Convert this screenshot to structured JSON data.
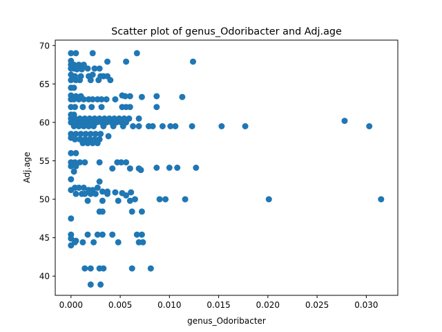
{
  "chart_data": {
    "type": "scatter",
    "title": "Scatter plot of genus_Odoribacter and Adj.age",
    "xlabel": "genus_Odoribacter",
    "ylabel": "Adj.age",
    "xlim": [
      -0.0016,
      0.0332
    ],
    "ylim": [
      37.5,
      70.7
    ],
    "xticks": [
      0.0,
      0.005,
      0.01,
      0.015,
      0.02,
      0.025,
      0.03
    ],
    "xtick_labels": [
      "0.000",
      "0.005",
      "0.010",
      "0.015",
      "0.020",
      "0.025",
      "0.030"
    ],
    "yticks": [
      40,
      45,
      50,
      55,
      60,
      65,
      70
    ],
    "ytick_labels": [
      "40",
      "45",
      "50",
      "55",
      "60",
      "65",
      "70"
    ],
    "grid": false,
    "marker_color": "#1f77b4",
    "points": [
      [
        0.0,
        69.0
      ],
      [
        0.0005,
        69.0
      ],
      [
        0.0022,
        69.0
      ],
      [
        0.0067,
        69.0
      ],
      [
        0.0,
        68.0
      ],
      [
        0.0,
        67.5
      ],
      [
        0.0003,
        67.5
      ],
      [
        0.0008,
        67.5
      ],
      [
        0.0013,
        67.5
      ],
      [
        0.0037,
        67.9
      ],
      [
        0.0056,
        67.9
      ],
      [
        0.0124,
        67.9
      ],
      [
        0.0,
        67.0
      ],
      [
        0.0003,
        67.0
      ],
      [
        0.0006,
        66.9
      ],
      [
        0.0011,
        66.9
      ],
      [
        0.0017,
        67.0
      ],
      [
        0.0024,
        67.0
      ],
      [
        0.0029,
        67.0
      ],
      [
        0.0,
        66.2
      ],
      [
        0.0004,
        66.0
      ],
      [
        0.001,
        66.0
      ],
      [
        0.0018,
        66.0
      ],
      [
        0.0022,
        66.2
      ],
      [
        0.003,
        66.0
      ],
      [
        0.0033,
        66.0
      ],
      [
        0.0037,
        66.0
      ],
      [
        0.0,
        65.5
      ],
      [
        0.0005,
        65.5
      ],
      [
        0.0009,
        65.5
      ],
      [
        0.002,
        65.5
      ],
      [
        0.0028,
        65.5
      ],
      [
        0.004,
        65.5
      ],
      [
        0.0,
        64.5
      ],
      [
        0.0003,
        64.5
      ],
      [
        0.0,
        63.5
      ],
      [
        0.0005,
        63.4
      ],
      [
        0.001,
        63.4
      ],
      [
        0.0052,
        63.5
      ],
      [
        0.0055,
        63.4
      ],
      [
        0.006,
        63.4
      ],
      [
        0.0072,
        63.3
      ],
      [
        0.0087,
        63.4
      ],
      [
        0.0113,
        63.3
      ],
      [
        0.0,
        63.0
      ],
      [
        0.0003,
        63.0
      ],
      [
        0.0008,
        63.0
      ],
      [
        0.0013,
        63.0
      ],
      [
        0.0018,
        63.0
      ],
      [
        0.0022,
        63.0
      ],
      [
        0.0027,
        63.0
      ],
      [
        0.0031,
        63.0
      ],
      [
        0.0036,
        63.0
      ],
      [
        0.0045,
        63.0
      ],
      [
        0.0,
        62.0
      ],
      [
        0.0004,
        62.0
      ],
      [
        0.0012,
        62.0
      ],
      [
        0.0021,
        62.0
      ],
      [
        0.0031,
        62.0
      ],
      [
        0.0052,
        62.0
      ],
      [
        0.0056,
        62.0
      ],
      [
        0.006,
        62.0
      ],
      [
        0.0087,
        62.0
      ],
      [
        0.0,
        61.0
      ],
      [
        0.0003,
        61.0
      ],
      [
        0.0,
        60.5
      ],
      [
        0.0004,
        60.5
      ],
      [
        0.0009,
        60.5
      ],
      [
        0.0014,
        60.5
      ],
      [
        0.0019,
        60.5
      ],
      [
        0.0024,
        60.5
      ],
      [
        0.0029,
        60.5
      ],
      [
        0.0034,
        60.5
      ],
      [
        0.0039,
        60.5
      ],
      [
        0.0044,
        60.5
      ],
      [
        0.0049,
        60.5
      ],
      [
        0.0054,
        60.5
      ],
      [
        0.0059,
        60.5
      ],
      [
        0.0069,
        60.5
      ],
      [
        0.0,
        60.0
      ],
      [
        0.0006,
        60.0
      ],
      [
        0.0011,
        60.0
      ],
      [
        0.0016,
        60.0
      ],
      [
        0.0021,
        60.0
      ],
      [
        0.0026,
        60.0
      ],
      [
        0.0031,
        60.0
      ],
      [
        0.0036,
        60.0
      ],
      [
        0.0041,
        60.0
      ],
      [
        0.0046,
        60.0
      ],
      [
        0.0051,
        60.0
      ],
      [
        0.0056,
        60.0
      ],
      [
        0.0278,
        60.2
      ],
      [
        0.0003,
        59.5
      ],
      [
        0.0008,
        59.5
      ],
      [
        0.0013,
        59.5
      ],
      [
        0.0018,
        59.5
      ],
      [
        0.0023,
        59.5
      ],
      [
        0.0033,
        59.5
      ],
      [
        0.0043,
        59.5
      ],
      [
        0.0053,
        59.5
      ],
      [
        0.0063,
        59.5
      ],
      [
        0.0069,
        59.5
      ],
      [
        0.0079,
        59.5
      ],
      [
        0.0083,
        59.5
      ],
      [
        0.0093,
        59.5
      ],
      [
        0.0101,
        59.5
      ],
      [
        0.0106,
        59.5
      ],
      [
        0.0123,
        59.5
      ],
      [
        0.0153,
        59.5
      ],
      [
        0.0177,
        59.5
      ],
      [
        0.0303,
        59.5
      ],
      [
        0.0,
        58.5
      ],
      [
        0.0005,
        58.5
      ],
      [
        0.001,
        58.5
      ],
      [
        0.0015,
        58.5
      ],
      [
        0.002,
        58.5
      ],
      [
        0.0025,
        58.5
      ],
      [
        0.003,
        58.5
      ],
      [
        0.0038,
        58.2
      ],
      [
        0.0,
        58.0
      ],
      [
        0.0004,
        57.8
      ],
      [
        0.0009,
        57.8
      ],
      [
        0.0014,
        57.8
      ],
      [
        0.0019,
        57.8
      ],
      [
        0.0024,
        57.8
      ],
      [
        0.0029,
        57.8
      ],
      [
        0.0012,
        57.3
      ],
      [
        0.0017,
        57.3
      ],
      [
        0.0022,
        57.3
      ],
      [
        0.0027,
        57.3
      ],
      [
        0.0,
        56.0
      ],
      [
        0.0005,
        56.0
      ],
      [
        0.0,
        54.8
      ],
      [
        0.0004,
        54.8
      ],
      [
        0.0009,
        54.8
      ],
      [
        0.0014,
        54.8
      ],
      [
        0.0029,
        54.8
      ],
      [
        0.0047,
        54.8
      ],
      [
        0.0051,
        54.8
      ],
      [
        0.0056,
        54.8
      ],
      [
        0.0,
        54.3
      ],
      [
        0.0005,
        54.3
      ],
      [
        0.0042,
        54.0
      ],
      [
        0.006,
        54.0
      ],
      [
        0.0069,
        54.0
      ],
      [
        0.0071,
        53.8
      ],
      [
        0.0087,
        54.1
      ],
      [
        0.01,
        54.1
      ],
      [
        0.0108,
        54.1
      ],
      [
        0.0127,
        54.1
      ],
      [
        0.0003,
        53.6
      ],
      [
        0.0,
        52.6
      ],
      [
        0.0029,
        52.3
      ],
      [
        0.0,
        51.2
      ],
      [
        0.0004,
        51.5
      ],
      [
        0.0008,
        51.5
      ],
      [
        0.0013,
        51.5
      ],
      [
        0.0018,
        51.2
      ],
      [
        0.0022,
        51.2
      ],
      [
        0.0027,
        51.5
      ],
      [
        0.0032,
        51.0
      ],
      [
        0.0037,
        51.0
      ],
      [
        0.0045,
        50.9
      ],
      [
        0.0052,
        50.8
      ],
      [
        0.0061,
        50.9
      ],
      [
        0.0005,
        50.7
      ],
      [
        0.0011,
        50.7
      ],
      [
        0.0014,
        50.7
      ],
      [
        0.002,
        50.7
      ],
      [
        0.0025,
        50.7
      ],
      [
        0.0037,
        50.7
      ],
      [
        0.0056,
        50.5
      ],
      [
        0.0017,
        49.8
      ],
      [
        0.0032,
        49.8
      ],
      [
        0.0048,
        49.8
      ],
      [
        0.006,
        49.8
      ],
      [
        0.0065,
        50.0
      ],
      [
        0.009,
        50.0
      ],
      [
        0.0096,
        50.0
      ],
      [
        0.0116,
        50.0
      ],
      [
        0.0201,
        50.0
      ],
      [
        0.0315,
        50.0
      ],
      [
        0.0029,
        48.4
      ],
      [
        0.0032,
        48.4
      ],
      [
        0.0062,
        48.4
      ],
      [
        0.0072,
        48.4
      ],
      [
        0.0,
        47.5
      ],
      [
        0.0,
        45.4
      ],
      [
        0.0017,
        45.4
      ],
      [
        0.0027,
        45.4
      ],
      [
        0.0032,
        45.4
      ],
      [
        0.0042,
        45.4
      ],
      [
        0.0067,
        45.4
      ],
      [
        0.0072,
        45.4
      ],
      [
        0.0,
        44.9
      ],
      [
        0.0005,
        44.6
      ],
      [
        0.0,
        44.0
      ],
      [
        0.0004,
        44.4
      ],
      [
        0.0012,
        44.4
      ],
      [
        0.0023,
        44.4
      ],
      [
        0.0048,
        44.4
      ],
      [
        0.0069,
        44.4
      ],
      [
        0.0073,
        44.4
      ],
      [
        0.0014,
        41.0
      ],
      [
        0.002,
        41.0
      ],
      [
        0.0029,
        41.0
      ],
      [
        0.0033,
        41.0
      ],
      [
        0.0062,
        41.0
      ],
      [
        0.0081,
        41.0
      ],
      [
        0.002,
        38.9
      ],
      [
        0.003,
        38.9
      ]
    ]
  }
}
